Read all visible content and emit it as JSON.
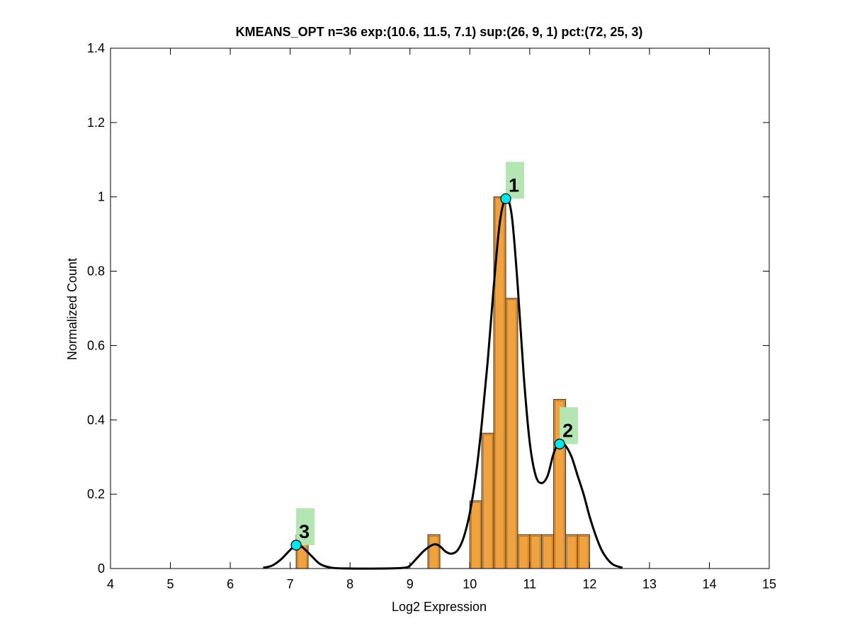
{
  "chart_data": {
    "type": "bar",
    "title": "KMEANS_OPT n=36 exp:(10.6, 11.5, 7.1) sup:(26, 9, 1) pct:(72, 25, 3)",
    "xlabel": "Log2 Expression",
    "ylabel": "Normalized Count",
    "xlim": [
      4,
      15
    ],
    "ylim": [
      0,
      1.4
    ],
    "xticks": [
      "4",
      "5",
      "6",
      "7",
      "8",
      "9",
      "10",
      "11",
      "12",
      "13",
      "14",
      "15"
    ],
    "yticks": [
      "0",
      "0.2",
      "0.4",
      "0.6",
      "0.8",
      "1",
      "1.2",
      "1.4"
    ],
    "grid": false,
    "bar_width": 0.2,
    "bars": [
      {
        "x": 7.2,
        "value": 0.091
      },
      {
        "x": 9.4,
        "value": 0.091
      },
      {
        "x": 10.1,
        "value": 0.182
      },
      {
        "x": 10.3,
        "value": 0.364
      },
      {
        "x": 10.5,
        "value": 1.0
      },
      {
        "x": 10.7,
        "value": 0.727
      },
      {
        "x": 10.9,
        "value": 0.091
      },
      {
        "x": 11.1,
        "value": 0.091
      },
      {
        "x": 11.3,
        "value": 0.091
      },
      {
        "x": 11.5,
        "value": 0.455
      },
      {
        "x": 11.7,
        "value": 0.091
      },
      {
        "x": 11.9,
        "value": 0.091
      }
    ],
    "density_curve": {
      "x": [
        6.55,
        6.7,
        6.85,
        7.0,
        7.1,
        7.2,
        7.35,
        7.5,
        7.7,
        8.0,
        8.5,
        8.9,
        9.0,
        9.1,
        9.25,
        9.4,
        9.5,
        9.6,
        9.7,
        9.8,
        9.9,
        10.0,
        10.1,
        10.2,
        10.3,
        10.4,
        10.5,
        10.6,
        10.7,
        10.8,
        10.9,
        11.0,
        11.1,
        11.2,
        11.3,
        11.4,
        11.5,
        11.6,
        11.7,
        11.8,
        11.9,
        12.0,
        12.1,
        12.2,
        12.3,
        12.4,
        12.55
      ],
      "y": [
        0.002,
        0.008,
        0.025,
        0.05,
        0.063,
        0.058,
        0.035,
        0.012,
        0.002,
        0.0,
        0.0,
        0.002,
        0.008,
        0.025,
        0.05,
        0.065,
        0.06,
        0.045,
        0.04,
        0.05,
        0.085,
        0.15,
        0.25,
        0.39,
        0.56,
        0.76,
        0.93,
        0.995,
        0.95,
        0.76,
        0.52,
        0.34,
        0.25,
        0.23,
        0.25,
        0.31,
        0.34,
        0.33,
        0.3,
        0.25,
        0.2,
        0.14,
        0.09,
        0.05,
        0.025,
        0.01,
        0.002
      ]
    },
    "peaks": [
      {
        "label": "1",
        "x": 10.6,
        "y": 0.995
      },
      {
        "label": "2",
        "x": 11.5,
        "y": 0.335
      },
      {
        "label": "3",
        "x": 7.1,
        "y": 0.063
      }
    ],
    "colors": {
      "bar_fill": "#F0A140",
      "bar_edge": "#3a2a10",
      "curve": "#000000",
      "peak_marker": "#00E5EE",
      "peak_label_bg": "#B4E6B4"
    }
  }
}
